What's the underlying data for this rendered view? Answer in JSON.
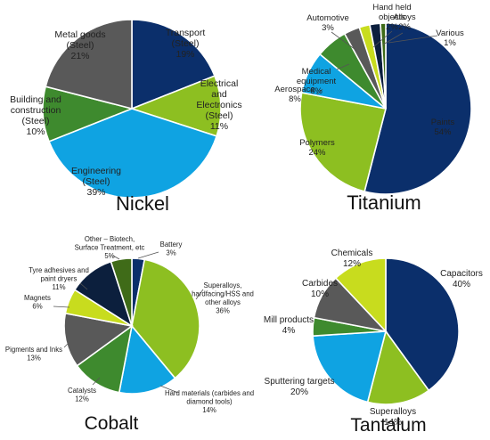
{
  "chart_data": [
    {
      "type": "pie",
      "title": "Nickel",
      "slices": [
        {
          "label": [
            "Transport",
            "(Steel)",
            "19%"
          ],
          "value": 19,
          "color": "#0b2f6b"
        },
        {
          "label": [
            "Electrical",
            "and",
            "Electronics",
            "(Steel)",
            "11%"
          ],
          "value": 11,
          "color": "#8dbf21"
        },
        {
          "label": [
            "Engineering",
            "(Steel)",
            "39%"
          ],
          "value": 39,
          "color": "#0fa3e2"
        },
        {
          "label": [
            "Building and",
            "construction",
            "(Steel)",
            "10%"
          ],
          "value": 10,
          "color": "#3e8a2e"
        },
        {
          "label": [
            "Metal goods",
            "(Steel)",
            "21%"
          ],
          "value": 21,
          "color": "#595959"
        }
      ]
    },
    {
      "type": "pie",
      "title": "Titanium",
      "slices": [
        {
          "label": [
            "Paints",
            "54%"
          ],
          "value": 54,
          "color": "#0b2f6b"
        },
        {
          "label": [
            "Polymers",
            "24%"
          ],
          "value": 24,
          "color": "#8dbf21"
        },
        {
          "label": [
            "Aerospace",
            "8%"
          ],
          "value": 8,
          "color": "#0fa3e2"
        },
        {
          "label": [
            "Medical",
            "equipment",
            "6%"
          ],
          "value": 6,
          "color": "#3e8a2e"
        },
        {
          "label": [
            "Automotive",
            "3%"
          ],
          "value": 3,
          "color": "#595959"
        },
        {
          "label": [
            "Hand held",
            "objects",
            "2%"
          ],
          "value": 2,
          "color": "#c8dc1e"
        },
        {
          "label": [
            "Alloys",
            "2%"
          ],
          "value": 2,
          "color": "#0c1f3d"
        },
        {
          "label": [
            "Various",
            "1%"
          ],
          "value": 1,
          "color": "#3f6b18"
        }
      ]
    },
    {
      "type": "pie",
      "title": "Cobalt",
      "slices": [
        {
          "label": [
            "Battery",
            "3%"
          ],
          "value": 3,
          "color": "#0b2f6b"
        },
        {
          "label": [
            "Superalloys,",
            "hardfacing/HSS and",
            "other alloys",
            "36%"
          ],
          "value": 36,
          "color": "#8dbf21"
        },
        {
          "label": [
            "Hard materials (carbides and",
            "diamond tools)",
            "14%"
          ],
          "value": 14,
          "color": "#0fa3e2"
        },
        {
          "label": [
            "Catalysts",
            "12%"
          ],
          "value": 12,
          "color": "#3e8a2e"
        },
        {
          "label": [
            "Pigments and Inks",
            "13%"
          ],
          "value": 13,
          "color": "#595959"
        },
        {
          "label": [
            "Magnets",
            "6%"
          ],
          "value": 6,
          "color": "#c8dc1e"
        },
        {
          "label": [
            "Tyre adhesives and",
            "paint dryers",
            "11%"
          ],
          "value": 11,
          "color": "#0c1f3d"
        },
        {
          "label": [
            "Other – Biotech,",
            "Surface Treatment, etc",
            "5%"
          ],
          "value": 5,
          "color": "#3f6b18"
        }
      ]
    },
    {
      "type": "pie",
      "title": "Tantalum",
      "slices": [
        {
          "label": [
            "Capacitors",
            "40%"
          ],
          "value": 40,
          "color": "#0b2f6b"
        },
        {
          "label": [
            "Superalloys",
            "14%"
          ],
          "value": 14,
          "color": "#8dbf21"
        },
        {
          "label": [
            "Sputtering targets",
            "20%"
          ],
          "value": 20,
          "color": "#0fa3e2"
        },
        {
          "label": [
            "Mill products",
            "4%"
          ],
          "value": 4,
          "color": "#3e8a2e"
        },
        {
          "label": [
            "Carbides",
            "10%"
          ],
          "value": 10,
          "color": "#595959"
        },
        {
          "label": [
            "Chemicals",
            "12%"
          ],
          "value": 12,
          "color": "#c8dc1e"
        }
      ]
    }
  ]
}
